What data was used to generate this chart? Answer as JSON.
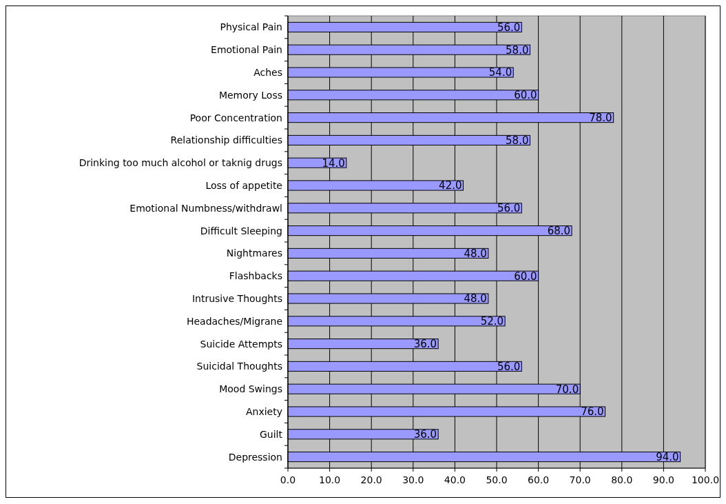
{
  "chart_data": {
    "type": "bar",
    "orientation": "horizontal",
    "categories": [
      "Physical Pain",
      "Emotional Pain",
      "Aches",
      "Memory Loss",
      "Poor Concentration",
      "Relationship difficulties",
      "Drinking too much alcohol or taknig drugs",
      "Loss of appetite",
      "Emotional Numbness/withdrawl",
      "Difficult Sleeping",
      "Nightmares",
      "Flashbacks",
      "Intrusive Thoughts",
      "Headaches/Migrane",
      "Suicide Attempts",
      "Suicidal Thoughts",
      "Mood Swings",
      "Anxiety",
      "Guilt",
      "Depression"
    ],
    "values": [
      56,
      58,
      54,
      60,
      78,
      58,
      14,
      42,
      56,
      68,
      48,
      60,
      48,
      52,
      36,
      56,
      70,
      76,
      36,
      94
    ],
    "value_labels": [
      "56.0",
      "58.0",
      "54.0",
      "60.0",
      "78.0",
      "58.0",
      "14.0",
      "42.0",
      "56.0",
      "68.0",
      "48.0",
      "60.0",
      "48.0",
      "52.0",
      "36.0",
      "56.0",
      "70.0",
      "76.0",
      "36.0",
      "94.0"
    ],
    "color": "#9999ff",
    "xlim": [
      0,
      100
    ],
    "xticks": [
      {
        "value": 0,
        "label": "0.0"
      },
      {
        "value": 10,
        "label": "10.0"
      },
      {
        "value": 20,
        "label": "20.0"
      },
      {
        "value": 30,
        "label": "30.0"
      },
      {
        "value": 40,
        "label": "40.0"
      },
      {
        "value": 50,
        "label": "50.0"
      },
      {
        "value": 60,
        "label": "60.0"
      },
      {
        "value": 70,
        "label": "70.0"
      },
      {
        "value": 80,
        "label": "80.0"
      },
      {
        "value": 90,
        "label": "90.0"
      },
      {
        "value": 100,
        "label": "100.0"
      }
    ],
    "grid": "x"
  }
}
